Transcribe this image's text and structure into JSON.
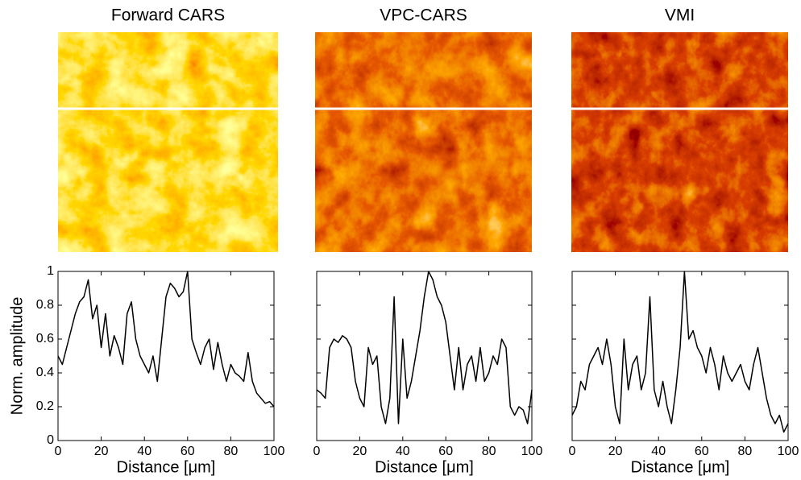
{
  "chart_data": [
    {
      "type": "line",
      "title": "Forward CARS",
      "xlabel": "Distance [μm]",
      "ylabel": "Norm. amplitude",
      "x": [
        0,
        2,
        4,
        6,
        8,
        10,
        12,
        14,
        16,
        18,
        20,
        22,
        24,
        26,
        28,
        30,
        32,
        34,
        36,
        38,
        40,
        42,
        44,
        46,
        48,
        50,
        52,
        54,
        56,
        58,
        60,
        62,
        64,
        66,
        68,
        70,
        72,
        74,
        76,
        78,
        80,
        82,
        84,
        86,
        88,
        90,
        92,
        94,
        96,
        98,
        100
      ],
      "series": [
        {
          "color": "#000000",
          "values": [
            0.5,
            0.45,
            0.55,
            0.65,
            0.75,
            0.82,
            0.85,
            0.95,
            0.72,
            0.8,
            0.55,
            0.75,
            0.5,
            0.62,
            0.55,
            0.45,
            0.75,
            0.82,
            0.6,
            0.5,
            0.45,
            0.4,
            0.5,
            0.35,
            0.6,
            0.85,
            0.93,
            0.9,
            0.85,
            0.88,
            1.0,
            0.6,
            0.52,
            0.45,
            0.55,
            0.6,
            0.42,
            0.58,
            0.45,
            0.35,
            0.45,
            0.4,
            0.38,
            0.35,
            0.52,
            0.35,
            0.28,
            0.25,
            0.22,
            0.23,
            0.2
          ]
        }
      ],
      "xlim": [
        0,
        100
      ],
      "xticks": [
        0,
        20,
        40,
        60,
        80,
        100
      ],
      "ylim": [
        0,
        1
      ],
      "yticks": [
        0,
        0.2,
        0.4,
        0.6,
        0.8,
        1
      ]
    },
    {
      "type": "line",
      "title": "VPC-CARS",
      "xlabel": "Distance [μm]",
      "x": [
        0,
        2,
        4,
        6,
        8,
        10,
        12,
        14,
        16,
        18,
        20,
        22,
        24,
        26,
        28,
        30,
        32,
        34,
        36,
        38,
        40,
        42,
        44,
        46,
        48,
        50,
        52,
        54,
        56,
        58,
        60,
        62,
        64,
        66,
        68,
        70,
        72,
        74,
        76,
        78,
        80,
        82,
        84,
        86,
        88,
        90,
        92,
        94,
        96,
        98,
        100
      ],
      "series": [
        {
          "color": "#000000",
          "values": [
            0.3,
            0.28,
            0.25,
            0.55,
            0.6,
            0.58,
            0.62,
            0.6,
            0.55,
            0.35,
            0.25,
            0.2,
            0.55,
            0.45,
            0.5,
            0.2,
            0.1,
            0.25,
            0.85,
            0.1,
            0.6,
            0.25,
            0.35,
            0.5,
            0.65,
            0.85,
            1.0,
            0.95,
            0.85,
            0.8,
            0.7,
            0.5,
            0.3,
            0.55,
            0.3,
            0.45,
            0.5,
            0.35,
            0.55,
            0.35,
            0.4,
            0.5,
            0.45,
            0.6,
            0.55,
            0.2,
            0.15,
            0.2,
            0.18,
            0.1,
            0.3
          ]
        }
      ],
      "xlim": [
        0,
        100
      ],
      "xticks": [
        0,
        20,
        40,
        60,
        80,
        100
      ],
      "ylim": [
        0,
        1
      ],
      "yticks": [
        0,
        0.2,
        0.4,
        0.6,
        0.8,
        1
      ]
    },
    {
      "type": "line",
      "title": "VMI",
      "xlabel": "Distance [μm]",
      "x": [
        0,
        2,
        4,
        6,
        8,
        10,
        12,
        14,
        16,
        18,
        20,
        22,
        24,
        26,
        28,
        30,
        32,
        34,
        36,
        38,
        40,
        42,
        44,
        46,
        48,
        50,
        52,
        54,
        56,
        58,
        60,
        62,
        64,
        66,
        68,
        70,
        72,
        74,
        76,
        78,
        80,
        82,
        84,
        86,
        88,
        90,
        92,
        94,
        96,
        98,
        100
      ],
      "series": [
        {
          "color": "#000000",
          "values": [
            0.15,
            0.2,
            0.35,
            0.3,
            0.45,
            0.5,
            0.55,
            0.45,
            0.6,
            0.45,
            0.2,
            0.1,
            0.6,
            0.3,
            0.45,
            0.5,
            0.3,
            0.4,
            0.85,
            0.3,
            0.2,
            0.35,
            0.2,
            0.1,
            0.3,
            0.55,
            1.0,
            0.6,
            0.65,
            0.55,
            0.5,
            0.4,
            0.55,
            0.45,
            0.3,
            0.5,
            0.4,
            0.35,
            0.4,
            0.45,
            0.35,
            0.3,
            0.45,
            0.55,
            0.4,
            0.25,
            0.15,
            0.1,
            0.15,
            0.05,
            0.1
          ]
        }
      ],
      "xlim": [
        0,
        100
      ],
      "xticks": [
        0,
        20,
        40,
        60,
        80,
        100
      ],
      "ylim": [
        0,
        1
      ],
      "yticks": [
        0,
        0.2,
        0.4,
        0.6,
        0.8,
        1
      ]
    }
  ]
}
